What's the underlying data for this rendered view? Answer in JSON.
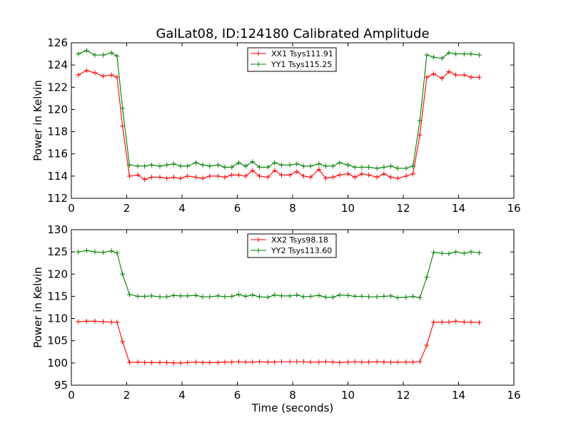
{
  "title": "GalLat08, ID:124180 Calibrated Amplitude",
  "chart_data": [
    {
      "type": "line",
      "xlabel": "",
      "ylabel": "Power in Kelvin",
      "xlim": [
        0,
        16
      ],
      "ylim": [
        112,
        126
      ],
      "xticks": [
        0,
        2,
        4,
        6,
        8,
        10,
        12,
        14,
        16
      ],
      "yticks": [
        112,
        114,
        116,
        118,
        120,
        122,
        124,
        126
      ],
      "grid": false,
      "legend_position": "top-center",
      "x": [
        0.25,
        0.55,
        0.85,
        1.15,
        1.45,
        1.65,
        1.85,
        2.1,
        2.4,
        2.65,
        2.9,
        3.2,
        3.45,
        3.7,
        3.95,
        4.2,
        4.5,
        4.75,
        5.0,
        5.3,
        5.55,
        5.8,
        6.05,
        6.3,
        6.55,
        6.8,
        7.1,
        7.35,
        7.6,
        7.9,
        8.15,
        8.4,
        8.65,
        8.95,
        9.2,
        9.45,
        9.7,
        10.0,
        10.25,
        10.5,
        10.75,
        11.05,
        11.3,
        11.55,
        11.8,
        12.1,
        12.35,
        12.6,
        12.85,
        13.1,
        13.4,
        13.65,
        13.9,
        14.2,
        14.45,
        14.75
      ],
      "series": [
        {
          "name": "XX1 Tsys111.91",
          "color": "#ff0000",
          "values": [
            123.1,
            123.5,
            123.3,
            123.0,
            123.1,
            122.9,
            118.5,
            114.0,
            114.1,
            113.7,
            113.9,
            113.9,
            113.8,
            113.9,
            113.8,
            114.0,
            113.9,
            113.8,
            114.0,
            114.0,
            113.9,
            114.1,
            114.1,
            114.0,
            114.5,
            114.0,
            113.9,
            114.5,
            114.1,
            114.1,
            114.4,
            114.0,
            113.9,
            114.6,
            113.8,
            113.9,
            114.1,
            114.2,
            113.9,
            114.2,
            114.1,
            113.9,
            114.2,
            113.9,
            113.8,
            114.0,
            114.2,
            117.7,
            122.9,
            123.2,
            122.8,
            123.4,
            123.1,
            123.1,
            122.9,
            122.9
          ]
        },
        {
          "name": "YY1 Tsys115.25",
          "color": "#008000",
          "values": [
            125.0,
            125.3,
            124.9,
            124.9,
            125.1,
            124.8,
            120.1,
            115.0,
            114.9,
            114.9,
            115.0,
            114.9,
            115.0,
            115.1,
            114.9,
            114.9,
            115.2,
            115.0,
            114.9,
            115.0,
            114.8,
            114.8,
            115.2,
            114.9,
            115.3,
            114.8,
            114.8,
            115.2,
            115.0,
            115.0,
            115.1,
            114.9,
            114.9,
            115.1,
            114.9,
            114.9,
            115.2,
            115.0,
            114.8,
            114.8,
            114.8,
            114.7,
            114.8,
            114.9,
            114.7,
            114.7,
            114.9,
            119.0,
            124.9,
            124.7,
            124.6,
            125.1,
            125.0,
            125.0,
            125.0,
            124.9
          ]
        }
      ]
    },
    {
      "type": "line",
      "xlabel": "Time (seconds)",
      "ylabel": "Power in Kelvin",
      "xlim": [
        0,
        16
      ],
      "ylim": [
        95,
        130
      ],
      "xticks": [
        0,
        2,
        4,
        6,
        8,
        10,
        12,
        14,
        16
      ],
      "yticks": [
        95,
        100,
        105,
        110,
        115,
        120,
        125,
        130
      ],
      "grid": false,
      "legend_position": "top-center",
      "x": [
        0.25,
        0.55,
        0.85,
        1.15,
        1.45,
        1.65,
        1.85,
        2.1,
        2.4,
        2.65,
        2.9,
        3.2,
        3.45,
        3.7,
        3.95,
        4.2,
        4.5,
        4.75,
        5.0,
        5.3,
        5.55,
        5.8,
        6.05,
        6.3,
        6.55,
        6.8,
        7.1,
        7.35,
        7.6,
        7.9,
        8.15,
        8.4,
        8.65,
        8.95,
        9.2,
        9.45,
        9.7,
        10.0,
        10.25,
        10.5,
        10.75,
        11.05,
        11.3,
        11.55,
        11.8,
        12.1,
        12.35,
        12.6,
        12.85,
        13.1,
        13.4,
        13.65,
        13.9,
        14.2,
        14.45,
        14.75
      ],
      "series": [
        {
          "name": "XX2 Tsys98.18",
          "color": "#ff0000",
          "values": [
            109.3,
            109.4,
            109.4,
            109.3,
            109.2,
            109.2,
            104.8,
            100.1,
            100.2,
            100.1,
            100.1,
            100.1,
            100.1,
            100.0,
            100.0,
            100.1,
            100.2,
            100.1,
            100.1,
            100.1,
            100.2,
            100.2,
            100.3,
            100.2,
            100.2,
            100.3,
            100.2,
            100.2,
            100.3,
            100.3,
            100.3,
            100.3,
            100.2,
            100.2,
            100.3,
            100.2,
            100.1,
            100.2,
            100.3,
            100.2,
            100.2,
            100.3,
            100.2,
            100.2,
            100.2,
            100.2,
            100.2,
            100.3,
            104.0,
            109.2,
            109.2,
            109.2,
            109.4,
            109.2,
            109.2,
            109.1
          ]
        },
        {
          "name": "YY2 Tsys113.60",
          "color": "#008000",
          "values": [
            125.0,
            125.3,
            125.0,
            124.9,
            125.2,
            124.8,
            120.0,
            115.4,
            115.0,
            115.0,
            115.1,
            114.9,
            114.9,
            115.2,
            115.1,
            115.1,
            115.2,
            114.9,
            114.9,
            115.1,
            114.9,
            115.0,
            115.4,
            115.0,
            115.3,
            114.9,
            114.8,
            115.3,
            115.1,
            115.1,
            115.3,
            114.9,
            115.0,
            115.2,
            114.8,
            114.8,
            115.3,
            115.2,
            115.0,
            115.0,
            114.9,
            114.9,
            115.0,
            115.1,
            114.7,
            114.8,
            115.0,
            114.7,
            119.3,
            124.9,
            124.7,
            124.6,
            125.0,
            124.7,
            125.0,
            124.8
          ]
        }
      ]
    }
  ]
}
